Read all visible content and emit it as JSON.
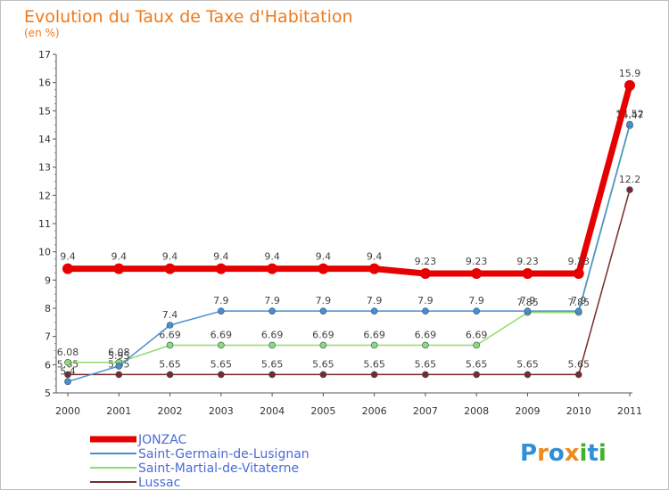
{
  "chart_data": {
    "type": "line",
    "title": "Evolution du Taux de Taxe d'Habitation",
    "subtitle": "(en %)",
    "x": [
      "2000",
      "2001",
      "2002",
      "2003",
      "2004",
      "2005",
      "2006",
      "2007",
      "2008",
      "2009",
      "2010",
      "2011"
    ],
    "ylim": [
      5,
      17
    ],
    "yticks": [
      "5",
      "6",
      "7",
      "8",
      "9",
      "10",
      "11",
      "12",
      "13",
      "14",
      "15",
      "16",
      "17"
    ],
    "grid": false,
    "legend_position": "bottom-left",
    "series": [
      {
        "name": "JONZAC",
        "color": "#e60000",
        "values": [
          9.4,
          9.4,
          9.4,
          9.4,
          9.4,
          9.4,
          9.4,
          9.23,
          9.23,
          9.23,
          9.23,
          15.9
        ],
        "labels": [
          "9.4",
          "9.4",
          "9.4",
          "9.4",
          "9.4",
          "9.4",
          "9.4",
          "9.23",
          "9.23",
          "9.23",
          "9.23",
          "15.9"
        ]
      },
      {
        "name": "Saint-Germain-de-Lusignan",
        "color": "#4a8ed0",
        "values": [
          5.4,
          5.95,
          7.4,
          7.9,
          7.9,
          7.9,
          7.9,
          7.9,
          7.9,
          7.9,
          7.9,
          14.52
        ],
        "labels": [
          "5.4",
          "5.95",
          "7.4",
          "7.9",
          "7.9",
          "7.9",
          "7.9",
          "7.9",
          "7.9",
          "7.9",
          "7.9",
          "14.52"
        ]
      },
      {
        "name": "Saint-Martial-de-Vitaterne",
        "color": "#8fdc6e",
        "values": [
          6.08,
          6.08,
          6.69,
          6.69,
          6.69,
          6.69,
          6.69,
          6.69,
          6.69,
          7.85,
          7.85,
          14.47
        ],
        "labels": [
          "6.08",
          "6.08",
          "6.69",
          "6.69",
          "6.69",
          "6.69",
          "6.69",
          "6.69",
          "6.69",
          "7.85",
          "7.85",
          "14.47"
        ]
      },
      {
        "name": "Lussac",
        "color": "#7a2a2a",
        "values": [
          5.65,
          5.65,
          5.65,
          5.65,
          5.65,
          5.65,
          5.65,
          5.65,
          5.65,
          5.65,
          5.65,
          12.2
        ],
        "labels": [
          "5.65",
          "5.65",
          "5.65",
          "5.65",
          "5.65",
          "5.65",
          "5.65",
          "5.65",
          "5.65",
          "5.65",
          "5.65",
          "12.2"
        ]
      }
    ]
  },
  "brand": {
    "text": "Proxiti",
    "letters": [
      "P",
      "r",
      "o",
      "x",
      "i",
      "t",
      "i"
    ],
    "letter_colors": [
      "#2f8fd8",
      "#ef8a1a",
      "#2f8fd8",
      "#ef8a1a",
      "#43b02a",
      "#2f8fd8",
      "#43b02a"
    ]
  }
}
